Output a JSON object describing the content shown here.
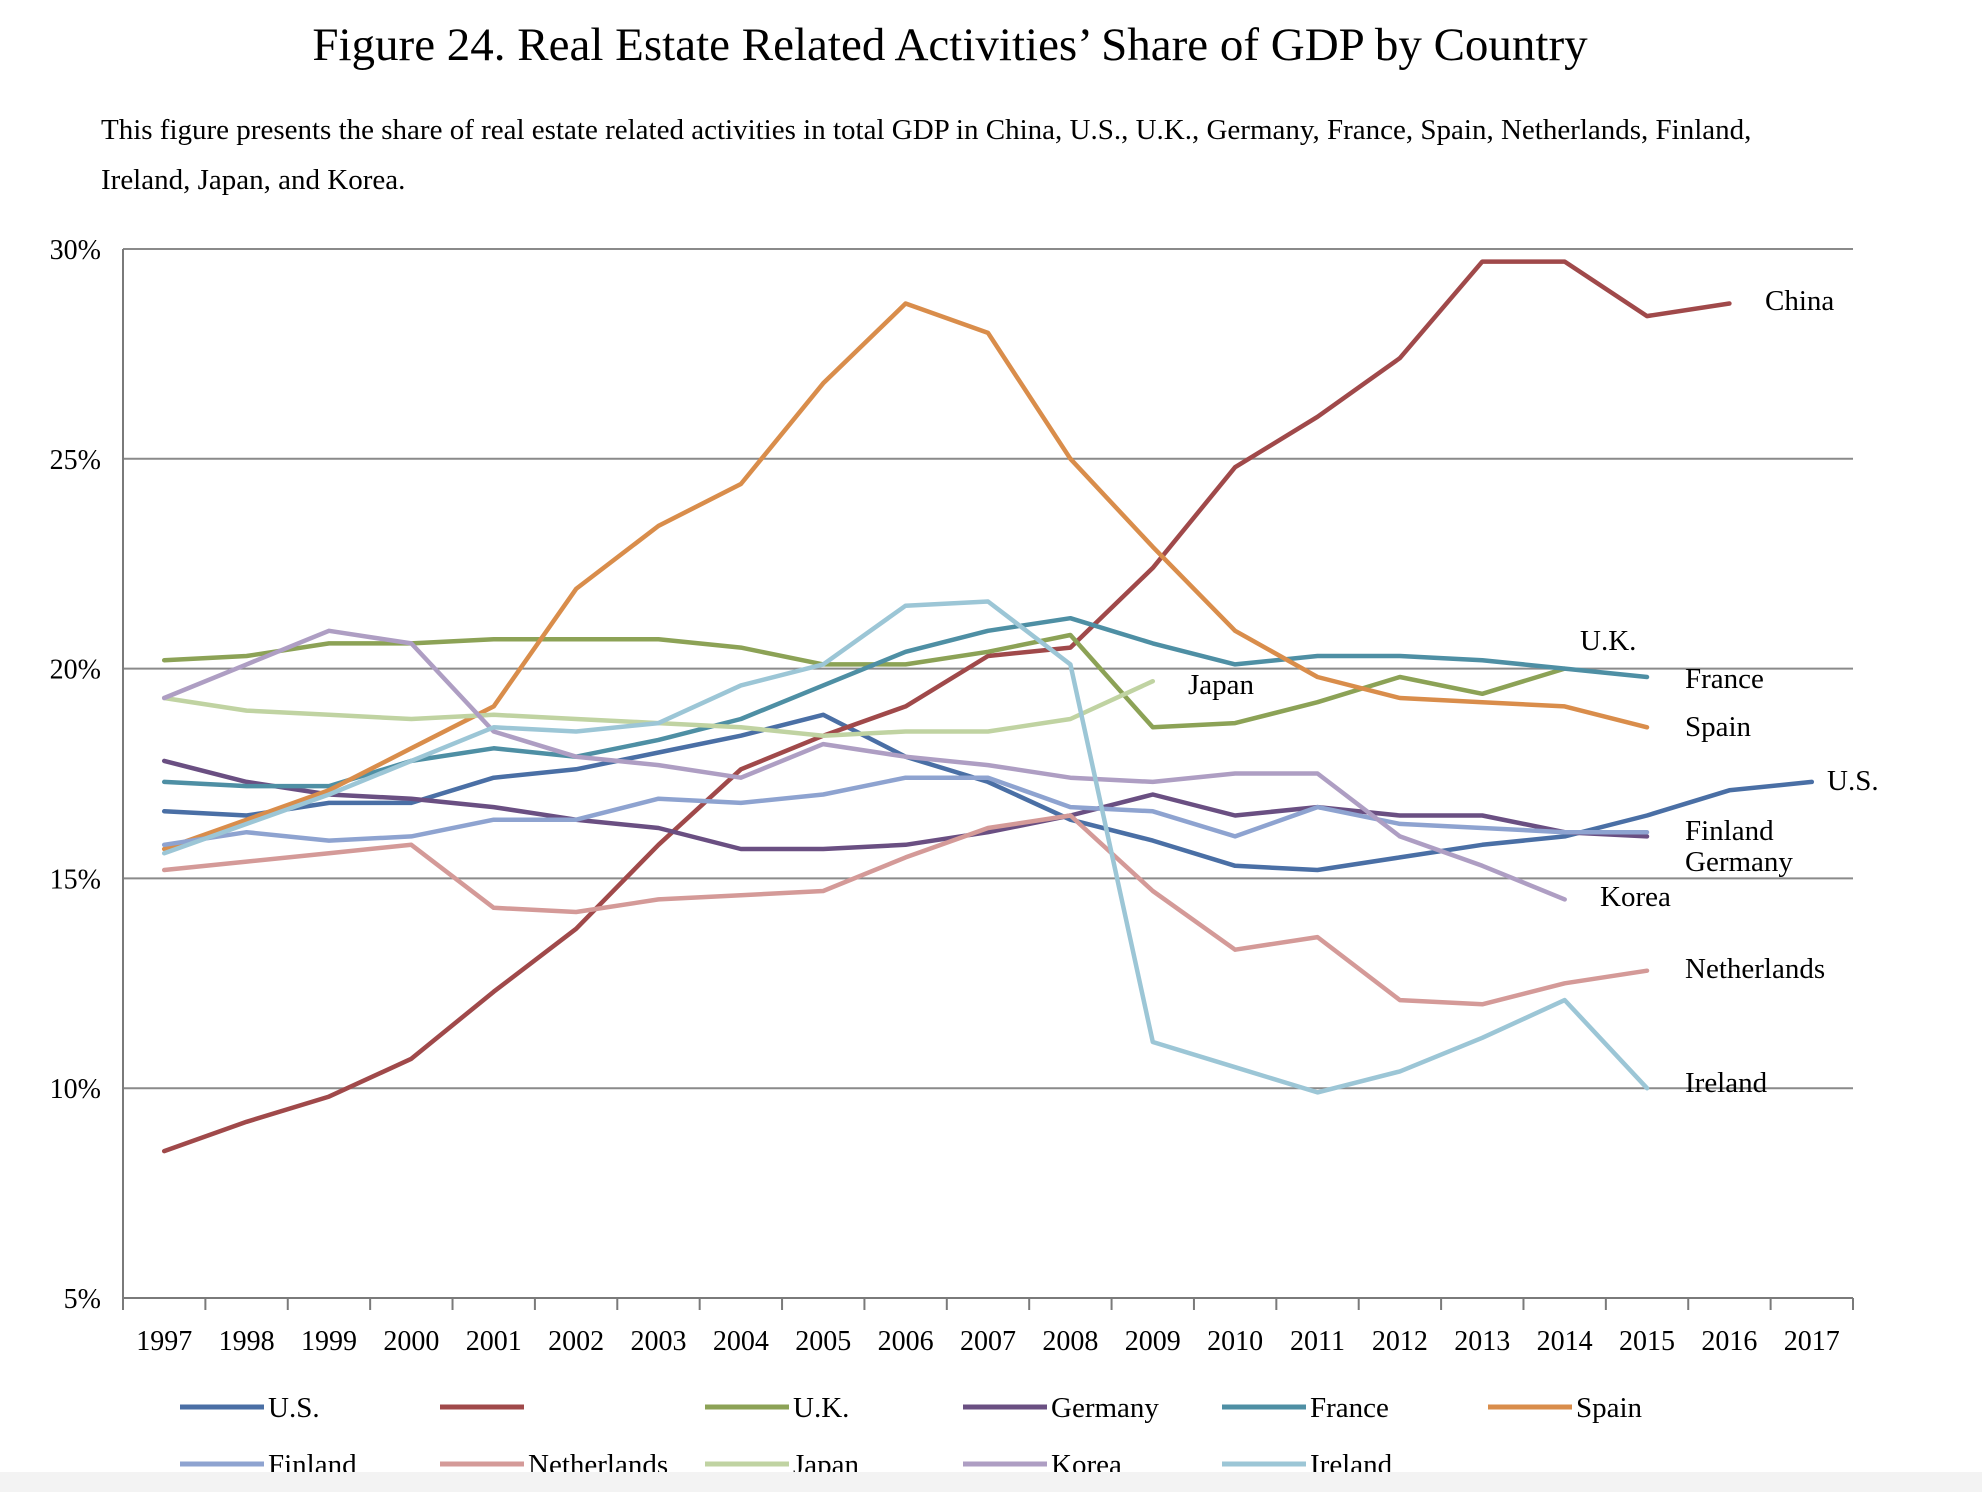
{
  "figure": {
    "title": "Figure 24. Real Estate Related Activities’ Share of GDP by Country",
    "subtitle": "This figure presents the share of real estate related activities in total GDP in China, U.S., U.K., Germany, France, Spain, Netherlands, Finland, Ireland, Japan, and Korea."
  },
  "chart_data": {
    "type": "line",
    "title": "Figure 24. Real Estate Related Activities’ Share of GDP by Country",
    "xlabel": "",
    "ylabel": "",
    "ylim": [
      5,
      30
    ],
    "y_ticks": [
      "5%",
      "10%",
      "15%",
      "20%",
      "25%",
      "30%"
    ],
    "y_tick_values": [
      5,
      10,
      15,
      20,
      25,
      30
    ],
    "grid": "horizontal",
    "legend_position": "bottom",
    "x": [
      "1997",
      "1998",
      "1999",
      "2000",
      "2001",
      "2002",
      "2003",
      "2004",
      "2005",
      "2006",
      "2007",
      "2008",
      "2009",
      "2010",
      "2011",
      "2012",
      "2013",
      "2014",
      "2015",
      "2016",
      "2017"
    ],
    "series": [
      {
        "name": "U.S.",
        "end_label": "U.S.",
        "legend_label": "U.S.",
        "color": "#4a6fa5",
        "values": [
          16.6,
          16.5,
          16.8,
          16.8,
          17.4,
          17.6,
          18.0,
          18.4,
          18.9,
          17.9,
          17.3,
          16.4,
          15.9,
          15.3,
          15.2,
          15.5,
          15.8,
          16.0,
          16.5,
          17.1,
          17.3
        ]
      },
      {
        "name": "China",
        "end_label": "China",
        "legend_label": "",
        "color": "#a0494a",
        "values": [
          8.5,
          9.2,
          9.8,
          10.7,
          12.3,
          13.8,
          15.8,
          17.6,
          18.4,
          19.1,
          20.3,
          20.5,
          22.4,
          24.8,
          26.0,
          27.4,
          29.7,
          29.7,
          28.4,
          28.7,
          null
        ]
      },
      {
        "name": "U.K.",
        "end_label": "U.K.",
        "legend_label": "U.K.",
        "color": "#8ca256",
        "values": [
          20.2,
          20.3,
          20.6,
          20.6,
          20.7,
          20.7,
          20.7,
          20.5,
          20.1,
          20.1,
          20.4,
          20.8,
          18.6,
          18.7,
          19.2,
          19.8,
          19.4,
          20.0,
          null,
          null,
          null
        ]
      },
      {
        "name": "Germany",
        "end_label": "Germany",
        "legend_label": "Germany",
        "color": "#6a4f82",
        "values": [
          17.8,
          17.3,
          17.0,
          16.9,
          16.7,
          16.4,
          16.2,
          15.7,
          15.7,
          15.8,
          16.1,
          16.5,
          17.0,
          16.5,
          16.7,
          16.5,
          16.5,
          16.1,
          16.0,
          null,
          null
        ]
      },
      {
        "name": "France",
        "end_label": "France",
        "legend_label": "France",
        "color": "#4e8fa4",
        "values": [
          17.3,
          17.2,
          17.2,
          17.8,
          18.1,
          17.9,
          18.3,
          18.8,
          19.6,
          20.4,
          20.9,
          21.2,
          20.6,
          20.1,
          20.3,
          20.3,
          20.2,
          20.0,
          19.8,
          null,
          null
        ]
      },
      {
        "name": "Spain",
        "end_label": "Spain",
        "legend_label": "Spain",
        "color": "#d98d4b",
        "values": [
          15.7,
          16.4,
          17.1,
          18.1,
          19.1,
          21.9,
          23.4,
          24.4,
          26.8,
          28.7,
          28.0,
          25.0,
          22.9,
          20.9,
          19.8,
          19.3,
          19.2,
          19.1,
          18.6,
          null,
          null
        ]
      },
      {
        "name": "Finland",
        "end_label": "Finland",
        "legend_label": "Finland",
        "color": "#8ea3d0",
        "values": [
          15.8,
          16.1,
          15.9,
          16.0,
          16.4,
          16.4,
          16.9,
          16.8,
          17.0,
          17.4,
          17.4,
          16.7,
          16.6,
          16.0,
          16.7,
          16.3,
          16.2,
          16.1,
          16.1,
          null,
          null
        ]
      },
      {
        "name": "Netherlands",
        "end_label": "Netherlands",
        "legend_label": "Netherlands",
        "color": "#d49a98",
        "values": [
          15.2,
          15.4,
          15.6,
          15.8,
          14.3,
          14.2,
          14.5,
          14.6,
          14.7,
          15.5,
          16.2,
          16.5,
          14.7,
          13.3,
          13.6,
          12.1,
          12.0,
          12.5,
          12.8,
          null,
          null
        ]
      },
      {
        "name": "Japan",
        "end_label": "Japan",
        "legend_label": "Japan",
        "color": "#c0d3a2",
        "values": [
          19.3,
          19.0,
          18.9,
          18.8,
          18.9,
          18.8,
          18.7,
          18.6,
          18.4,
          18.5,
          18.5,
          18.8,
          19.7,
          null,
          null,
          null,
          null,
          null,
          null,
          null,
          null
        ]
      },
      {
        "name": "Korea",
        "end_label": "Korea",
        "legend_label": "Korea",
        "color": "#ae9ec3",
        "values": [
          19.3,
          20.1,
          20.9,
          20.6,
          18.5,
          17.9,
          17.7,
          17.4,
          18.2,
          17.9,
          17.7,
          17.4,
          17.3,
          17.5,
          17.5,
          16.0,
          15.3,
          14.5,
          null,
          null,
          null
        ]
      },
      {
        "name": "Ireland",
        "end_label": "Ireland",
        "legend_label": "Ireland",
        "color": "#9cc6d6",
        "values": [
          15.6,
          16.3,
          17.0,
          17.8,
          18.6,
          18.5,
          18.7,
          19.6,
          20.1,
          21.5,
          21.6,
          20.1,
          11.1,
          10.5,
          9.9,
          10.4,
          11.2,
          12.1,
          10.0,
          null,
          null
        ]
      }
    ]
  }
}
